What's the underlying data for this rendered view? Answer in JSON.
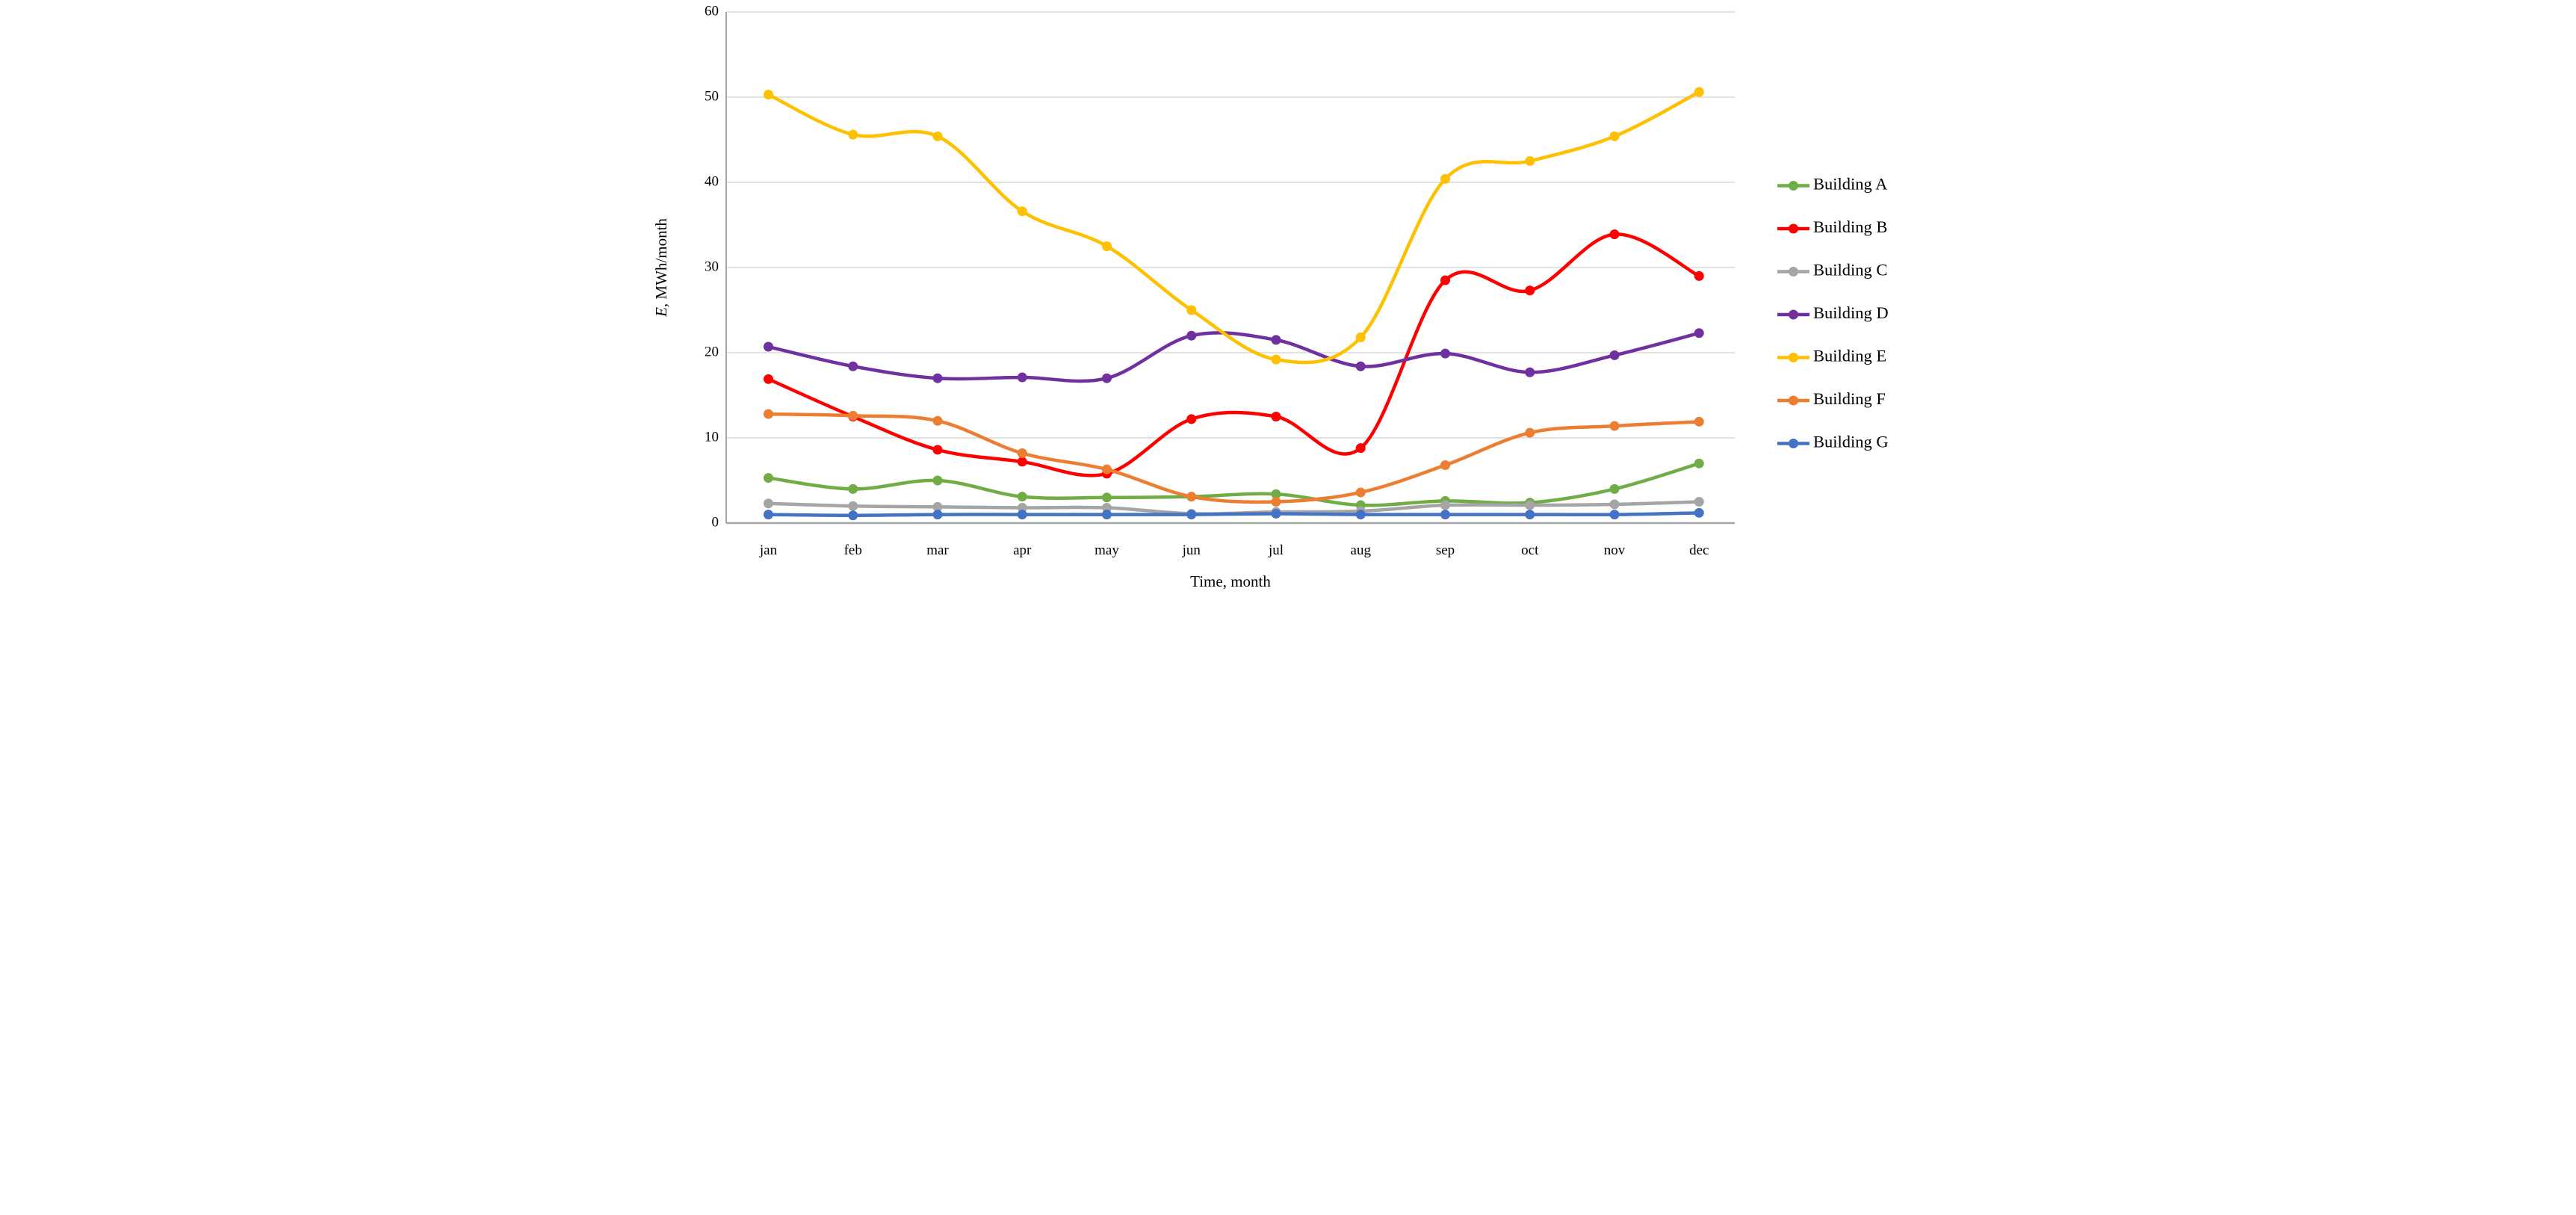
{
  "chart_data": {
    "type": "line",
    "title": "",
    "xlabel": "Time, month",
    "ylabel": "E, MWh/month",
    "ylabel_italic_prefix": "E",
    "categories": [
      "jan",
      "feb",
      "mar",
      "apr",
      "may",
      "jun",
      "jul",
      "aug",
      "sep",
      "oct",
      "nov",
      "dec"
    ],
    "yticks": [
      0,
      10,
      20,
      30,
      40,
      50,
      60
    ],
    "ylim": [
      0,
      60
    ],
    "grid": true,
    "marker": "circle",
    "line_style": "smooth",
    "legend_position": "right",
    "axis_color": "#a6a6a6",
    "grid_color": "#d9d9d9",
    "series": [
      {
        "name": "Building A",
        "color": "#70ad47",
        "values": [
          5.3,
          4.0,
          5.0,
          3.1,
          3.0,
          3.1,
          3.4,
          2.1,
          2.6,
          2.4,
          4.0,
          7.0
        ]
      },
      {
        "name": "Building B",
        "color": "#ff0000",
        "values": [
          16.9,
          12.5,
          8.6,
          7.2,
          5.8,
          12.2,
          12.5,
          8.8,
          28.5,
          27.3,
          33.9,
          29.0
        ]
      },
      {
        "name": "Building C",
        "color": "#a5a5a5",
        "values": [
          2.3,
          2.0,
          1.9,
          1.8,
          1.8,
          1.1,
          1.3,
          1.4,
          2.1,
          2.1,
          2.2,
          2.5
        ]
      },
      {
        "name": "Building D",
        "color": "#7030a0",
        "values": [
          20.7,
          18.4,
          17.0,
          17.1,
          17.0,
          22.0,
          21.5,
          18.4,
          19.9,
          17.7,
          19.7,
          22.3
        ]
      },
      {
        "name": "Building E",
        "color": "#ffc000",
        "values": [
          50.3,
          45.6,
          45.4,
          36.6,
          32.5,
          25.0,
          19.2,
          21.8,
          40.4,
          42.5,
          45.4,
          50.6
        ]
      },
      {
        "name": "Building F",
        "color": "#ed7d31",
        "values": [
          12.8,
          12.6,
          12.0,
          8.2,
          6.3,
          3.1,
          2.5,
          3.6,
          6.8,
          10.6,
          11.4,
          11.9
        ]
      },
      {
        "name": "Building G",
        "color": "#4472c4",
        "values": [
          1.0,
          0.9,
          1.0,
          1.0,
          1.0,
          1.0,
          1.1,
          1.0,
          1.0,
          1.0,
          1.0,
          1.2
        ]
      }
    ]
  }
}
